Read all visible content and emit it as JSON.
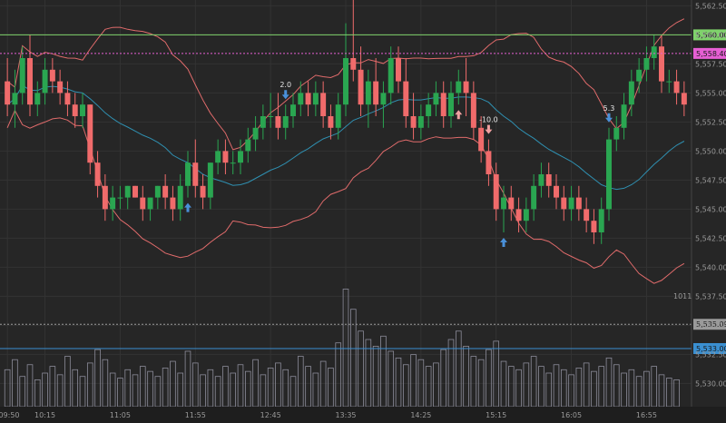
{
  "chart_data": {
    "type": "candlestick",
    "title": "",
    "price_axis": {
      "range": [
        5528,
        5563
      ],
      "ticks": [
        "5,562.50",
        "5,560.00",
        "5,557.50",
        "5,555.00",
        "5,552.50",
        "5,550.00",
        "5,547.50",
        "5,545.00",
        "5,542.50",
        "5,540.00",
        "5,537.50",
        "5,535.00",
        "5,532.50",
        "5,530.00"
      ],
      "tick_values": [
        5562.5,
        5560,
        5557.5,
        5555,
        5552.5,
        5550,
        5547.5,
        5545,
        5542.5,
        5540,
        5537.5,
        5535,
        5532.5,
        5530
      ]
    },
    "time_axis": {
      "labels": [
        "09:50",
        "10:15",
        "11:05",
        "11:55",
        "12:45",
        "13:35",
        "14:25",
        "15:15",
        "16:05",
        "16:55"
      ],
      "label_index": [
        0,
        5,
        15,
        25,
        35,
        45,
        55,
        65,
        75,
        85
      ]
    },
    "candles": [
      [
        5556,
        5558,
        5553,
        5554
      ],
      [
        5554,
        5557,
        5552,
        5555
      ],
      [
        5555,
        5559,
        5554,
        5558
      ],
      [
        5558,
        5560,
        5553,
        5554
      ],
      [
        5554,
        5556,
        5553,
        5555
      ],
      [
        5555,
        5558,
        5554,
        5557
      ],
      [
        5557,
        5558,
        5555,
        5556
      ],
      [
        5556,
        5557,
        5554,
        5555
      ],
      [
        5555,
        5556,
        5553,
        5554
      ],
      [
        5554,
        5555,
        5552,
        5553
      ],
      [
        5553,
        5555,
        5552,
        5554
      ],
      [
        5554,
        5554,
        5548,
        5549
      ],
      [
        5549,
        5550,
        5546,
        5547
      ],
      [
        5547,
        5548,
        5544,
        5545
      ],
      [
        5545,
        5547,
        5544,
        5546
      ],
      [
        5546,
        5547,
        5545,
        5546
      ],
      [
        5546,
        5547,
        5545,
        5547
      ],
      [
        5547,
        5547,
        5546,
        5546
      ],
      [
        5546,
        5547,
        5544,
        5545
      ],
      [
        5545,
        5546,
        5544,
        5546
      ],
      [
        5546,
        5547,
        5545,
        5547
      ],
      [
        5547,
        5548,
        5545,
        5546
      ],
      [
        5546,
        5547,
        5544,
        5545
      ],
      [
        5545,
        5548,
        5544,
        5547
      ],
      [
        5547,
        5550,
        5546,
        5549
      ],
      [
        5549,
        5551,
        5546,
        5547
      ],
      [
        5547,
        5548,
        5545,
        5546
      ],
      [
        5546,
        5549,
        5545,
        5549
      ],
      [
        5549,
        5551,
        5548,
        5550
      ],
      [
        5550,
        5551,
        5548,
        5549
      ],
      [
        5549,
        5550,
        5548,
        5549
      ],
      [
        5549,
        5551,
        5548,
        5550
      ],
      [
        5550,
        5552,
        5549,
        5551
      ],
      [
        5551,
        5553,
        5550,
        5552
      ],
      [
        5552,
        5554,
        5551,
        5553
      ],
      [
        5553,
        5555,
        5552,
        5553
      ],
      [
        5553,
        5555,
        5551,
        5552
      ],
      [
        5552,
        5554,
        5551,
        5553
      ],
      [
        5553,
        5555,
        5552,
        5554
      ],
      [
        5554,
        5556,
        5553,
        5555
      ],
      [
        5555,
        5556,
        5553,
        5554
      ],
      [
        5554,
        5556,
        5553,
        5555
      ],
      [
        5555,
        5556,
        5552,
        5553
      ],
      [
        5553,
        5554,
        5551,
        5552
      ],
      [
        5552,
        5555,
        5551,
        5554
      ],
      [
        5554,
        5561,
        5553,
        5558
      ],
      [
        5558,
        5563,
        5556,
        5557
      ],
      [
        5557,
        5559,
        5553,
        5554
      ],
      [
        5554,
        5557,
        5552,
        5556
      ],
      [
        5556,
        5558,
        5553,
        5554
      ],
      [
        5554,
        5556,
        5552,
        5555
      ],
      [
        5555,
        5559,
        5554,
        5558
      ],
      [
        5558,
        5559,
        5555,
        5556
      ],
      [
        5556,
        5558,
        5552,
        5553
      ],
      [
        5553,
        5555,
        5551,
        5552
      ],
      [
        5552,
        5554,
        5551,
        5553
      ],
      [
        5553,
        5555,
        5552,
        5554
      ],
      [
        5554,
        5556,
        5553,
        5555
      ],
      [
        5555,
        5556,
        5552,
        5553
      ],
      [
        5553,
        5556,
        5552,
        5555
      ],
      [
        5555,
        5557,
        5554,
        5556
      ],
      [
        5556,
        5558,
        5553,
        5555
      ],
      [
        5555,
        5556,
        5551,
        5552
      ],
      [
        5552,
        5553,
        5549,
        5550
      ],
      [
        5550,
        5551,
        5547,
        5548
      ],
      [
        5548,
        5549,
        5544,
        5545
      ],
      [
        5545,
        5547,
        5543,
        5546
      ],
      [
        5546,
        5547,
        5544,
        5545
      ],
      [
        5545,
        5546,
        5543,
        5544
      ],
      [
        5544,
        5546,
        5543,
        5545
      ],
      [
        5545,
        5548,
        5544,
        5547
      ],
      [
        5547,
        5549,
        5546,
        5548
      ],
      [
        5548,
        5549,
        5546,
        5547
      ],
      [
        5547,
        5548,
        5545,
        5546
      ],
      [
        5546,
        5547,
        5544,
        5545
      ],
      [
        5545,
        5547,
        5544,
        5546
      ],
      [
        5546,
        5547,
        5544,
        5545
      ],
      [
        5545,
        5546,
        5543,
        5544
      ],
      [
        5544,
        5545,
        5542,
        5543
      ],
      [
        5543,
        5546,
        5542,
        5545
      ],
      [
        5545,
        5552,
        5544,
        5551
      ],
      [
        5551,
        5553,
        5550,
        5552
      ],
      [
        5552,
        5555,
        5551,
        5554
      ],
      [
        5554,
        5557,
        5553,
        5556
      ],
      [
        5556,
        5558,
        5555,
        5557
      ],
      [
        5557,
        5559,
        5556,
        5558
      ],
      [
        5558,
        5560,
        5557,
        5559
      ],
      [
        5559,
        5560,
        5555,
        5556
      ],
      [
        5556,
        5557,
        5555,
        5556
      ],
      [
        5556,
        5557,
        5554,
        5555
      ],
      [
        5555,
        5556,
        5553,
        5554
      ]
    ],
    "volume": [
      22,
      28,
      18,
      25,
      16,
      20,
      24,
      19,
      30,
      22,
      18,
      26,
      34,
      28,
      20,
      17,
      22,
      19,
      24,
      21,
      18,
      23,
      27,
      20,
      33,
      26,
      19,
      22,
      18,
      24,
      20,
      25,
      21,
      28,
      19,
      23,
      26,
      22,
      18,
      30,
      24,
      20,
      27,
      23,
      38,
      70,
      58,
      45,
      40,
      36,
      42,
      33,
      29,
      25,
      31,
      28,
      24,
      26,
      34,
      40,
      45,
      36,
      30,
      28,
      34,
      39,
      27,
      24,
      22,
      26,
      30,
      24,
      20,
      25,
      22,
      19,
      23,
      26,
      21,
      24,
      29,
      25,
      20,
      22,
      18,
      21,
      24,
      19,
      17,
      16
    ],
    "volume_range": [
      0,
      80
    ],
    "reference_lines": [
      {
        "price": 5560,
        "label": "5,560.00",
        "color": "#7fd36b"
      },
      {
        "price": 5558.4,
        "label": "5,558.40",
        "color": "#e65fd4"
      },
      {
        "price": 5535.09,
        "label": "5,535.09",
        "color": "#9a9a9a"
      },
      {
        "price": 5533,
        "label": "5,533.00",
        "color": "#3a8fd1"
      }
    ],
    "markers": [
      {
        "index": 24,
        "type": "arrow-up",
        "color": "#4a90d9",
        "label": ""
      },
      {
        "index": 37,
        "type": "arrow-down",
        "color": "#4a90d9",
        "label": "2.0"
      },
      {
        "index": 60,
        "type": "arrow-up",
        "color": "#f0a0a0",
        "label": ""
      },
      {
        "index": 64,
        "type": "arrow-down",
        "color": "#f0a0a0",
        "label": "-10.0"
      },
      {
        "index": 66,
        "type": "arrow-up",
        "color": "#4a90d9",
        "label": ""
      },
      {
        "index": 80,
        "type": "arrow-down",
        "color": "#4a90d9",
        "label": "5.3"
      }
    ],
    "annotation": "1011",
    "colors": {
      "background": "#262626",
      "up": "#2aa651",
      "down": "#f06b6b",
      "band": "#e06b6b",
      "mid": "#2f8fb0",
      "volume": "#8c8c9a",
      "grid": "#333333"
    },
    "grid": true
  }
}
